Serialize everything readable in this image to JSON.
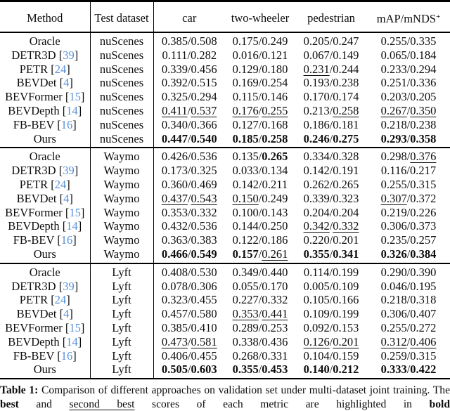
{
  "colors": {
    "text": "#0d0d0d",
    "rule": "#000000",
    "citation_blue": "#5590d8",
    "background": "#ffffff"
  },
  "table": {
    "headers": [
      "Method",
      "Test dataset",
      "car",
      "two-wheeler",
      "pedestrian",
      "mAP/mNDS"
    ],
    "header_superscript": "+",
    "groups": [
      {
        "dataset": "nuScenes",
        "rows": [
          {
            "method": "Oracle",
            "ref": "",
            "cells": [
              [
                "0.385",
                "n",
                "0.508",
                "n"
              ],
              [
                "0.175",
                "n",
                "0.249",
                "n"
              ],
              [
                "0.205",
                "n",
                "0.247",
                "n"
              ],
              [
                "0.255",
                "n",
                "0.335",
                "n"
              ]
            ]
          },
          {
            "method": "DETR3D",
            "ref": "39",
            "cells": [
              [
                "0.111",
                "n",
                "0.282",
                "n"
              ],
              [
                "0.016",
                "n",
                "0.121",
                "n"
              ],
              [
                "0.067",
                "n",
                "0.149",
                "n"
              ],
              [
                "0.065",
                "n",
                "0.184",
                "n"
              ]
            ]
          },
          {
            "method": "PETR",
            "ref": "24",
            "cells": [
              [
                "0.339",
                "n",
                "0.456",
                "n"
              ],
              [
                "0.129",
                "n",
                "0.180",
                "n"
              ],
              [
                "0.231",
                "u",
                "0.244",
                "n"
              ],
              [
                "0.233",
                "n",
                "0.294",
                "n"
              ]
            ]
          },
          {
            "method": "BEVDet",
            "ref": "4",
            "cells": [
              [
                "0.392",
                "n",
                "0.515",
                "n"
              ],
              [
                "0.169",
                "n",
                "0.254",
                "n"
              ],
              [
                "0.193",
                "n",
                "0.238",
                "n"
              ],
              [
                "0.251",
                "n",
                "0.336",
                "n"
              ]
            ]
          },
          {
            "method": "BEVFormer",
            "ref": "15",
            "cells": [
              [
                "0.325",
                "n",
                "0.294",
                "n"
              ],
              [
                "0.115",
                "n",
                "0.146",
                "n"
              ],
              [
                "0.170",
                "n",
                "0.174",
                "n"
              ],
              [
                "0.203",
                "n",
                "0.205",
                "n"
              ]
            ]
          },
          {
            "method": "BEVDepth",
            "ref": "14",
            "cells": [
              [
                "0.411",
                "u",
                "0.537",
                "u"
              ],
              [
                "0.176",
                "u",
                "0.255",
                "u"
              ],
              [
                "0.213",
                "n",
                "0.258",
                "u"
              ],
              [
                "0.267",
                "u",
                "0.350",
                "u"
              ]
            ]
          },
          {
            "method": "FB-BEV",
            "ref": "16",
            "cells": [
              [
                "0.340",
                "n",
                "0.366",
                "n"
              ],
              [
                "0.127",
                "n",
                "0.168",
                "n"
              ],
              [
                "0.186",
                "n",
                "0.181",
                "n"
              ],
              [
                "0.218",
                "n",
                "0.238",
                "n"
              ]
            ]
          },
          {
            "method": "Ours",
            "ref": "",
            "cells": [
              [
                "0.447",
                "b",
                "0.540",
                "b"
              ],
              [
                "0.185",
                "b",
                "0.258",
                "b"
              ],
              [
                "0.246",
                "b",
                "0.275",
                "b"
              ],
              [
                "0.293",
                "b",
                "0.358",
                "b"
              ]
            ]
          }
        ]
      },
      {
        "dataset": "Waymo",
        "rows": [
          {
            "method": "Oracle",
            "ref": "",
            "cells": [
              [
                "0.426",
                "n",
                "0.536",
                "n"
              ],
              [
                "0.135",
                "n",
                "0.265",
                "b"
              ],
              [
                "0.334",
                "n",
                "0.328",
                "n"
              ],
              [
                "0.298",
                "n",
                "0.376",
                "u"
              ]
            ]
          },
          {
            "method": "DETR3D",
            "ref": "39",
            "cells": [
              [
                "0.173",
                "n",
                "0.325",
                "n"
              ],
              [
                "0.033",
                "n",
                "0.134",
                "n"
              ],
              [
                "0.142",
                "n",
                "0.191",
                "n"
              ],
              [
                "0.116",
                "n",
                "0.217",
                "n"
              ]
            ]
          },
          {
            "method": "PETR",
            "ref": "24",
            "cells": [
              [
                "0.360",
                "n",
                "0.469",
                "n"
              ],
              [
                "0.142",
                "n",
                "0.211",
                "n"
              ],
              [
                "0.262",
                "n",
                "0.265",
                "n"
              ],
              [
                "0.255",
                "n",
                "0.315",
                "n"
              ]
            ]
          },
          {
            "method": "BEVDet",
            "ref": "4",
            "cells": [
              [
                "0.437",
                "u",
                "0.543",
                "u"
              ],
              [
                "0.150",
                "u",
                "0.249",
                "n"
              ],
              [
                "0.339",
                "n",
                "0.323",
                "n"
              ],
              [
                "0.307",
                "u",
                "0.372",
                "n"
              ]
            ]
          },
          {
            "method": "BEVFormer",
            "ref": "15",
            "cells": [
              [
                "0.353",
                "n",
                "0.332",
                "n"
              ],
              [
                "0.100",
                "n",
                "0.143",
                "n"
              ],
              [
                "0.204",
                "n",
                "0.204",
                "n"
              ],
              [
                "0.219",
                "n",
                "0.226",
                "n"
              ]
            ]
          },
          {
            "method": "BEVDepth",
            "ref": "14",
            "cells": [
              [
                "0.432",
                "n",
                "0.536",
                "n"
              ],
              [
                "0.144",
                "n",
                "0.250",
                "n"
              ],
              [
                "0.342",
                "u",
                "0.332",
                "u"
              ],
              [
                "0.306",
                "n",
                "0.373",
                "n"
              ]
            ]
          },
          {
            "method": "FB-BEV",
            "ref": "16",
            "cells": [
              [
                "0.363",
                "n",
                "0.383",
                "n"
              ],
              [
                "0.122",
                "n",
                "0.186",
                "n"
              ],
              [
                "0.220",
                "n",
                "0.201",
                "n"
              ],
              [
                "0.235",
                "n",
                "0.257",
                "n"
              ]
            ]
          },
          {
            "method": "Ours",
            "ref": "",
            "cells": [
              [
                "0.466",
                "b",
                "0.549",
                "b"
              ],
              [
                "0.157",
                "b",
                "0.261",
                "u"
              ],
              [
                "0.355",
                "b",
                "0.341",
                "b"
              ],
              [
                "0.326",
                "b",
                "0.384",
                "b"
              ]
            ]
          }
        ]
      },
      {
        "dataset": "Lyft",
        "rows": [
          {
            "method": "Oracle",
            "ref": "",
            "cells": [
              [
                "0.408",
                "n",
                "0.530",
                "n"
              ],
              [
                "0.349",
                "n",
                "0.440",
                "n"
              ],
              [
                "0.114",
                "n",
                "0.199",
                "n"
              ],
              [
                "0.290",
                "n",
                "0.390",
                "n"
              ]
            ]
          },
          {
            "method": "DETR3D",
            "ref": "39",
            "cells": [
              [
                "0.078",
                "n",
                "0.306",
                "n"
              ],
              [
                "0.055",
                "n",
                "0.170",
                "n"
              ],
              [
                "0.005",
                "n",
                "0.109",
                "n"
              ],
              [
                "0.046",
                "n",
                "0.195",
                "n"
              ]
            ]
          },
          {
            "method": "PETR",
            "ref": "24",
            "cells": [
              [
                "0.323",
                "n",
                "0.455",
                "n"
              ],
              [
                "0.227",
                "n",
                "0.332",
                "n"
              ],
              [
                "0.105",
                "n",
                "0.166",
                "n"
              ],
              [
                "0.218",
                "n",
                "0.318",
                "n"
              ]
            ]
          },
          {
            "method": "BEVDet",
            "ref": "4",
            "cells": [
              [
                "0.457",
                "n",
                "0.580",
                "n"
              ],
              [
                "0.353",
                "u",
                "0.441",
                "u"
              ],
              [
                "0.109",
                "n",
                "0.199",
                "n"
              ],
              [
                "0.306",
                "n",
                "0.407",
                "n"
              ]
            ]
          },
          {
            "method": "BEVFormer",
            "ref": "15",
            "cells": [
              [
                "0.385",
                "n",
                "0.410",
                "n"
              ],
              [
                "0.289",
                "n",
                "0.253",
                "n"
              ],
              [
                "0.092",
                "n",
                "0.153",
                "n"
              ],
              [
                "0.255",
                "n",
                "0.272",
                "n"
              ]
            ]
          },
          {
            "method": "BEVDepth",
            "ref": "14",
            "cells": [
              [
                "0.473",
                "u",
                "0.581",
                "u"
              ],
              [
                "0.338",
                "n",
                "0.436",
                "n"
              ],
              [
                "0.126",
                "u",
                "0.201",
                "u"
              ],
              [
                "0.312",
                "u",
                "0.406",
                "u"
              ]
            ]
          },
          {
            "method": "FB-BEV",
            "ref": "16",
            "cells": [
              [
                "0.406",
                "n",
                "0.455",
                "n"
              ],
              [
                "0.268",
                "n",
                "0.331",
                "n"
              ],
              [
                "0.104",
                "n",
                "0.159",
                "n"
              ],
              [
                "0.259",
                "n",
                "0.315",
                "n"
              ]
            ]
          },
          {
            "method": "Ours",
            "ref": "",
            "cells": [
              [
                "0.505",
                "b",
                "0.603",
                "b"
              ],
              [
                "0.355",
                "b",
                "0.453",
                "b"
              ],
              [
                "0.140",
                "b",
                "0.212",
                "b"
              ],
              [
                "0.333",
                "b",
                "0.422",
                "b"
              ]
            ]
          }
        ]
      }
    ]
  },
  "caption": {
    "segments": [
      {
        "text": "Table 1: ",
        "style": "b"
      },
      {
        "text": "Comparison of different approaches on validation set under multi-dataset joint training. The ",
        "style": "n"
      },
      {
        "text": "best",
        "style": "b"
      },
      {
        "text": " and ",
        "style": "n"
      },
      {
        "text": "second best",
        "style": "u"
      },
      {
        "text": " scores of each metric are highlighted in ",
        "style": "n"
      },
      {
        "text": "bold",
        "style": "b"
      }
    ]
  }
}
